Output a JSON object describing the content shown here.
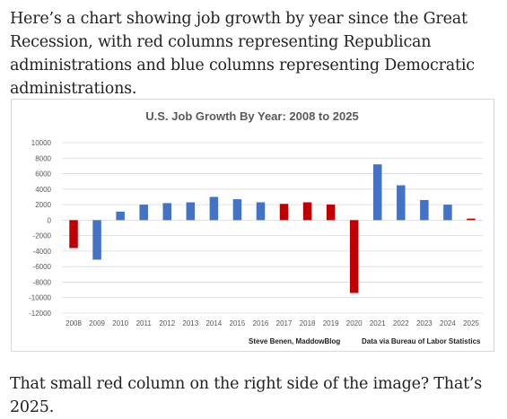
{
  "article": {
    "intro": "Here’s a chart showing job growth by year since the Great Recession, with red columns representing Republican administrations and blue columns representing Democratic administrations.",
    "outro": "That small red column on the right side of the image? That’s 2025."
  },
  "colors": {
    "republican": "#c00000",
    "democratic": "#4472c4",
    "grid": "#d9d9d9"
  },
  "chart_data": {
    "type": "bar",
    "title": "U.S. Job Growth By Year: 2008 to 2025",
    "xlabel": "",
    "ylabel": "",
    "ylim": [
      -12000,
      10000
    ],
    "y_ticks": [
      10000,
      8000,
      6000,
      4000,
      2000,
      0,
      -2000,
      -4000,
      -6000,
      -8000,
      -10000,
      -12000
    ],
    "grid": true,
    "categories": [
      "2008",
      "2009",
      "2010",
      "2011",
      "2012",
      "2013",
      "2014",
      "2015",
      "2016",
      "2017",
      "2018",
      "2019",
      "2020",
      "2021",
      "2022",
      "2023",
      "2024",
      "2025"
    ],
    "values": [
      -3600,
      -5100,
      1100,
      2000,
      2200,
      2300,
      3000,
      2700,
      2300,
      2100,
      2300,
      2000,
      -9400,
      7200,
      4500,
      2600,
      2000,
      200
    ],
    "party": [
      "R",
      "D",
      "D",
      "D",
      "D",
      "D",
      "D",
      "D",
      "D",
      "R",
      "R",
      "R",
      "R",
      "D",
      "D",
      "D",
      "D",
      "R"
    ],
    "credit_left": "Steve Benen, MaddowBlog",
    "credit_right": "Data via Bureau of Labor Statistics"
  }
}
